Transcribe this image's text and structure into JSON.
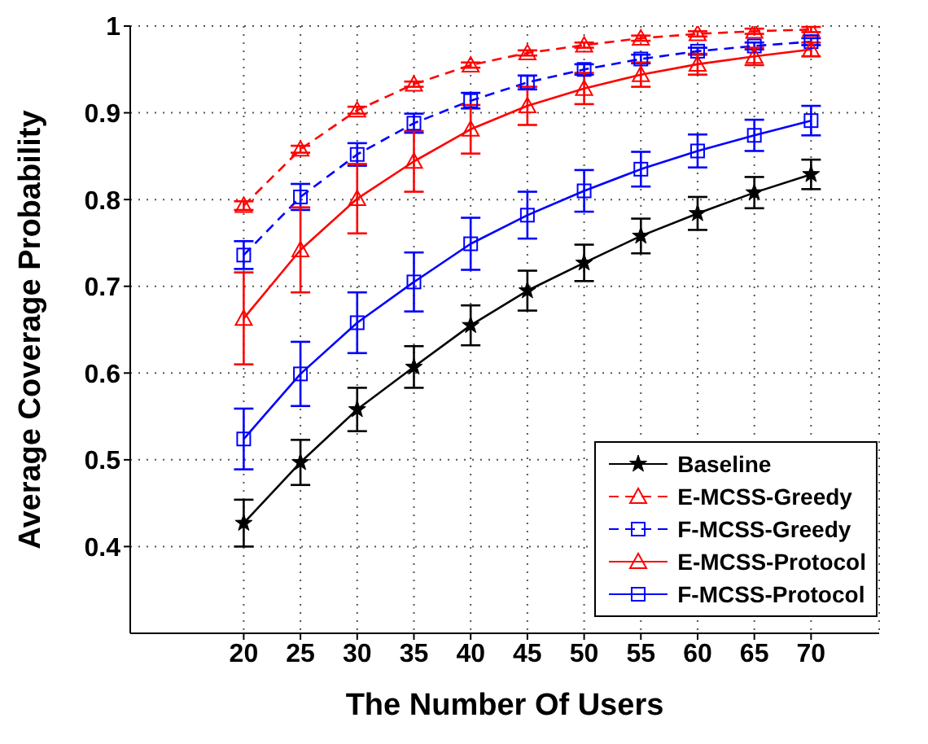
{
  "chart_data": {
    "type": "line",
    "xlabel": "The Number Of Users",
    "ylabel": "Average Coverage Probability",
    "x": [
      20,
      25,
      30,
      35,
      40,
      45,
      50,
      55,
      60,
      65,
      70
    ],
    "xlim": [
      10,
      76
    ],
    "xticks": [
      20,
      25,
      30,
      35,
      40,
      45,
      50,
      55,
      60,
      65,
      70
    ],
    "ylim": [
      0.3,
      1
    ],
    "yticks": [
      0.4,
      0.5,
      0.6,
      0.7,
      0.8,
      0.9,
      1
    ],
    "grid": true,
    "legend": "bottom right",
    "series": [
      {
        "name": "Baseline",
        "color": "#000000",
        "marker": "star",
        "line_style": "solid",
        "values": [
          0.427,
          0.497,
          0.558,
          0.607,
          0.655,
          0.695,
          0.727,
          0.758,
          0.784,
          0.808,
          0.829
        ],
        "errors": [
          0.027,
          0.026,
          0.025,
          0.024,
          0.023,
          0.023,
          0.021,
          0.02,
          0.019,
          0.018,
          0.017
        ]
      },
      {
        "name": "E-MCSS-Greedy",
        "color": "#ff0000",
        "marker": "triangle",
        "line_style": "dashed",
        "values": [
          0.793,
          0.858,
          0.903,
          0.933,
          0.955,
          0.969,
          0.978,
          0.986,
          0.991,
          0.994,
          0.996
        ],
        "errors": [
          0.005,
          0.004,
          0.004,
          0.003,
          0.003,
          0.003,
          0.003,
          0.003,
          0.003,
          0.003,
          0.003
        ]
      },
      {
        "name": "F-MCSS-Greedy",
        "color": "#0000ff",
        "marker": "square",
        "line_style": "dashed",
        "values": [
          0.736,
          0.803,
          0.852,
          0.888,
          0.914,
          0.935,
          0.95,
          0.962,
          0.971,
          0.977,
          0.982
        ],
        "errors": [
          0.016,
          0.015,
          0.013,
          0.011,
          0.009,
          0.008,
          0.006,
          0.005,
          0.004,
          0.004,
          0.004
        ]
      },
      {
        "name": "E-MCSS-Protocol",
        "color": "#ff0000",
        "marker": "triangle",
        "line_style": "solid",
        "values": [
          0.663,
          0.742,
          0.801,
          0.844,
          0.881,
          0.908,
          0.928,
          0.944,
          0.956,
          0.965,
          0.973
        ],
        "errors": [
          0.053,
          0.049,
          0.04,
          0.035,
          0.028,
          0.022,
          0.018,
          0.014,
          0.012,
          0.01,
          0.008
        ]
      },
      {
        "name": "F-MCSS-Protocol",
        "color": "#0000ff",
        "marker": "square",
        "line_style": "solid",
        "values": [
          0.524,
          0.599,
          0.658,
          0.705,
          0.749,
          0.782,
          0.81,
          0.835,
          0.856,
          0.874,
          0.891
        ],
        "errors": [
          0.035,
          0.037,
          0.035,
          0.034,
          0.03,
          0.027,
          0.024,
          0.02,
          0.019,
          0.018,
          0.017
        ]
      }
    ]
  }
}
